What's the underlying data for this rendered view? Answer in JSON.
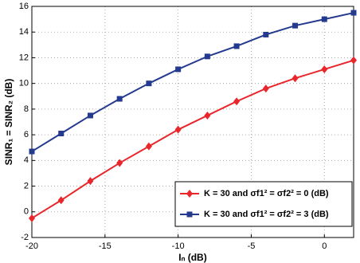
{
  "chart_data": {
    "type": "line",
    "x_label": "Iₙ (dB)",
    "y_label": "SINR₁ = SINR₂ (dB)",
    "x": [
      -20,
      -18,
      -16,
      -14,
      -12,
      -10,
      -8,
      -6,
      -4,
      -2,
      0,
      2
    ],
    "series": [
      {
        "name": "K = 30 and σf1² = σf2² = 0 (dB)",
        "color": "#e8262b",
        "marker": "diamond",
        "values": [
          -0.5,
          0.9,
          2.4,
          3.8,
          5.1,
          6.4,
          7.5,
          8.6,
          9.6,
          10.4,
          11.1,
          11.8
        ]
      },
      {
        "name": "K = 30 and σf1² = σf2² = 3 (dB)",
        "color": "#243a8f",
        "marker": "square",
        "values": [
          4.7,
          6.1,
          7.5,
          8.8,
          10.0,
          11.1,
          12.1,
          12.9,
          13.8,
          14.5,
          15.0,
          15.5
        ]
      }
    ],
    "xlim": [
      -20,
      2
    ],
    "xticks": [
      -20,
      -15,
      -10,
      -5,
      0
    ],
    "ylim": [
      -2,
      16
    ],
    "yticks": [
      -2,
      0,
      2,
      4,
      6,
      8,
      10,
      12,
      14,
      16
    ],
    "grid": true,
    "legend": "lower right"
  }
}
